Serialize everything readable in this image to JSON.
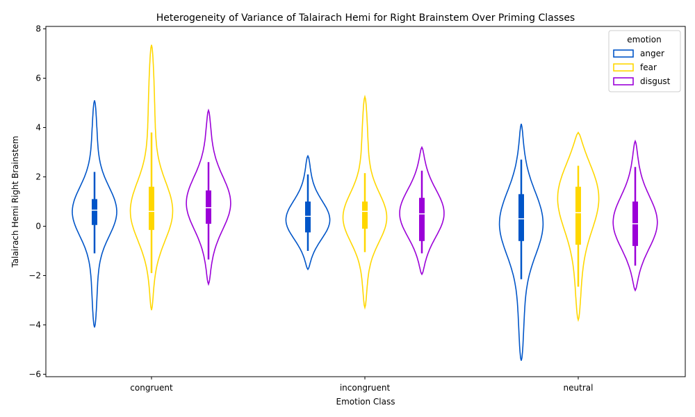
{
  "chart_data": {
    "type": "violin",
    "title": "Heterogeneity of Variance of Talairach Hemi for Right Brainstem Over Priming Classes",
    "xlabel": "Emotion Class",
    "ylabel": "Talairach Hemi Right Brainstem",
    "categories": [
      "congruent",
      "incongruent",
      "neutral"
    ],
    "ylim": [
      -6.1,
      8.1
    ],
    "yticks": [
      -6,
      -4,
      -2,
      0,
      2,
      4,
      6,
      8
    ],
    "grid": false,
    "legend": {
      "title": "emotion",
      "placement": "top-right"
    },
    "series": [
      {
        "name": "anger",
        "color": "#0055c8",
        "violins": [
          {
            "min": -4.1,
            "max": 5.1,
            "q1": 0.05,
            "median": 0.65,
            "q3": 1.1,
            "whisker_low": -1.1,
            "whisker_high": 2.2,
            "mode": 0.6,
            "spread": 1.0
          },
          {
            "min": -1.75,
            "max": 2.85,
            "q1": -0.25,
            "median": 0.4,
            "q3": 1.0,
            "whisker_low": -1.0,
            "whisker_high": 2.1,
            "mode": 0.2,
            "spread": 0.8
          },
          {
            "min": -5.45,
            "max": 4.15,
            "q1": -0.6,
            "median": 0.3,
            "q3": 1.3,
            "whisker_low": -2.15,
            "whisker_high": 2.7,
            "mode": 0.2,
            "spread": 1.3
          }
        ]
      },
      {
        "name": "fear",
        "color": "#ffd700",
        "violins": [
          {
            "min": -3.4,
            "max": 7.35,
            "q1": -0.15,
            "median": 0.6,
            "q3": 1.6,
            "whisker_low": -1.9,
            "whisker_high": 3.8,
            "mode": 0.5,
            "spread": 1.2
          },
          {
            "min": -3.3,
            "max": 5.25,
            "q1": -0.1,
            "median": 0.6,
            "q3": 1.0,
            "whisker_low": -1.05,
            "whisker_high": 2.15,
            "mode": 0.3,
            "spread": 1.0
          },
          {
            "min": -3.8,
            "max": 3.8,
            "q1": -0.75,
            "median": 0.55,
            "q3": 1.6,
            "whisker_low": -2.45,
            "whisker_high": 2.45,
            "mode": 1.4,
            "spread": 1.4
          }
        ]
      },
      {
        "name": "disgust",
        "color": "#9b00d8",
        "violins": [
          {
            "min": -2.35,
            "max": 4.7,
            "q1": 0.1,
            "median": 0.75,
            "q3": 1.45,
            "whisker_low": -1.35,
            "whisker_high": 2.6,
            "mode": 0.9,
            "spread": 1.1
          },
          {
            "min": -1.95,
            "max": 3.2,
            "q1": -0.6,
            "median": 0.5,
            "q3": 1.15,
            "whisker_low": -1.1,
            "whisker_high": 2.25,
            "mode": 0.5,
            "spread": 1.0
          },
          {
            "min": -2.6,
            "max": 3.45,
            "q1": -0.8,
            "median": 0.1,
            "q3": 1.0,
            "whisker_low": -1.6,
            "whisker_high": 2.4,
            "mode": 0.1,
            "spread": 1.1
          }
        ]
      }
    ]
  }
}
